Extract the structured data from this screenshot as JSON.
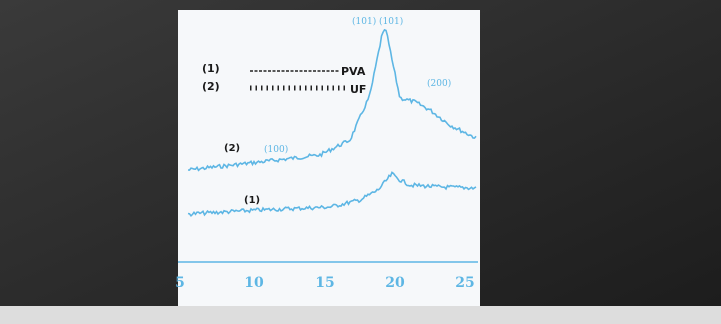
{
  "legend": [
    {
      "marker": "(1)",
      "label": "PVA"
    },
    {
      "marker": "(2)",
      "label": "UF"
    }
  ],
  "peak_labels": {
    "top": "(101) (101)",
    "right": "(200)",
    "left": "(100)"
  },
  "curve_labels": {
    "upper": "(2)",
    "lower": "(1)"
  },
  "x_axis_labels": [
    "5",
    "10",
    "15",
    "20",
    "25"
  ]
}
